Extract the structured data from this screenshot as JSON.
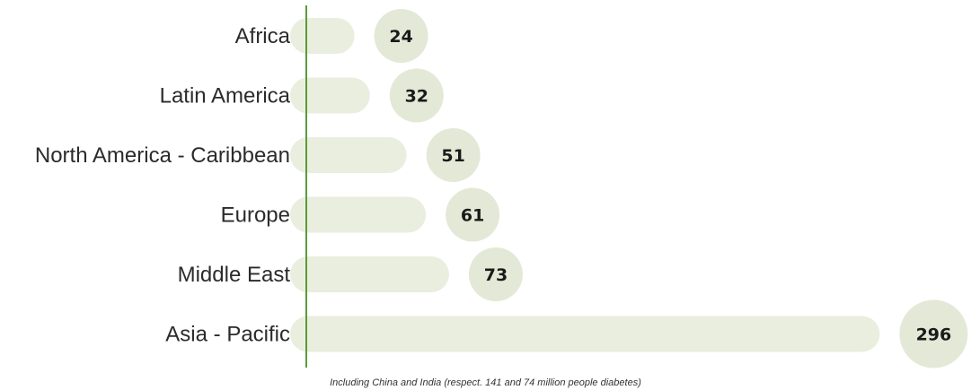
{
  "chart_data": {
    "type": "bar",
    "orientation": "horizontal",
    "categories": [
      "Africa",
      "Latin America",
      "North America - Caribbean",
      "Europe",
      "Middle East",
      "Asia - Pacific"
    ],
    "values": [
      24,
      32,
      51,
      61,
      73,
      296
    ],
    "value_labels": [
      "24",
      "32",
      "51",
      "61",
      "73",
      "296"
    ],
    "title": "",
    "xlabel": "",
    "ylabel": "",
    "xlim": [
      0,
      296
    ],
    "grid": false,
    "legend": "none",
    "annotation": "Including China and India (respect. 141 and 74 million people diabetes)"
  },
  "colors": {
    "bar": "#e9eedf",
    "bubble": "#e3e9d6",
    "axis": "#5a9a3a",
    "text": "#2b2b2b"
  }
}
